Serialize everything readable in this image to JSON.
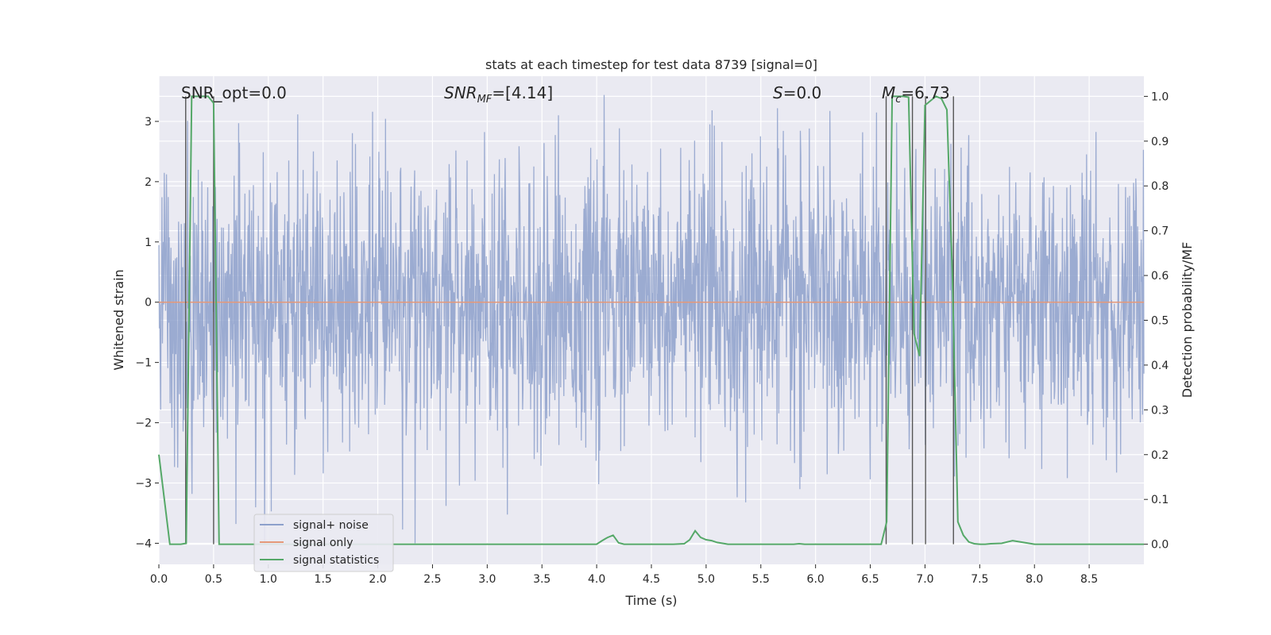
{
  "chart_data": {
    "type": "line",
    "title": "stats at each timestep for test data 8739 [signal=0]",
    "xlabel": "Time (s)",
    "ylabel": "Whitened strain",
    "ylabel_right": "Detection probability/MF",
    "xlim": [
      0.0,
      9.0
    ],
    "ylim": [
      -4.35,
      3.75
    ],
    "ylim_right": [
      -0.045,
      1.045
    ],
    "x_ticks": [
      "0.0",
      "0.5",
      "1.0",
      "1.5",
      "2.0",
      "2.5",
      "3.0",
      "3.5",
      "4.0",
      "4.5",
      "5.0",
      "5.5",
      "6.0",
      "6.5",
      "7.0",
      "7.5",
      "8.0",
      "8.5"
    ],
    "x_tick_values": [
      0.0,
      0.5,
      1.0,
      1.5,
      2.0,
      2.5,
      3.0,
      3.5,
      4.0,
      4.5,
      5.0,
      5.5,
      6.0,
      6.5,
      7.0,
      7.5,
      8.0,
      8.5
    ],
    "y_ticks_left": [
      "−4",
      "−3",
      "−2",
      "−1",
      "0",
      "1",
      "2",
      "3"
    ],
    "y_tick_values_left": [
      -4,
      -3,
      -2,
      -1,
      0,
      1,
      2,
      3
    ],
    "y_ticks_right": [
      "0.0",
      "0.1",
      "0.2",
      "0.3",
      "0.4",
      "0.5",
      "0.6",
      "0.7",
      "0.8",
      "0.9",
      "1.0"
    ],
    "y_tick_values_right": [
      0.0,
      0.1,
      0.2,
      0.3,
      0.4,
      0.5,
      0.6,
      0.7,
      0.8,
      0.9,
      1.0
    ],
    "grid": true,
    "legend_position": "lower-left",
    "annotations": {
      "snr_opt": "SNR_opt=0.0",
      "snr_mf_main": "SNR",
      "snr_mf_sub": "MF",
      "snr_mf_suffix": "=[4.14]",
      "s_main": "S",
      "s_suffix": "=0.0",
      "mc_main": "M",
      "mc_sub": "c",
      "mc_suffix": "=6.73"
    },
    "series": [
      {
        "name": "signal+ noise",
        "color": "#8da0cb",
        "description_level": "noise",
        "x_range": [
          0.0,
          9.0
        ],
        "typical_amplitude": 1.2,
        "peak_max": 3.5,
        "peak_min": -4.0
      },
      {
        "name": "signal only",
        "color": "#e5997a",
        "x": [
          0.0,
          9.0
        ],
        "y": [
          0.0,
          0.0
        ]
      },
      {
        "name": "signal statistics",
        "color": "#55a868",
        "axis": "right",
        "x": [
          0.0,
          0.05,
          0.1,
          0.15,
          0.2,
          0.25,
          0.3,
          0.35,
          0.4,
          0.45,
          0.5,
          0.55,
          0.6,
          0.65,
          0.7,
          1.0,
          2.0,
          3.0,
          3.5,
          4.0,
          4.05,
          4.1,
          4.15,
          4.2,
          4.25,
          4.3,
          4.5,
          4.7,
          4.8,
          4.85,
          4.9,
          4.95,
          5.0,
          5.05,
          5.1,
          5.15,
          5.2,
          5.25,
          5.3,
          5.5,
          5.8,
          5.85,
          5.9,
          6.0,
          6.5,
          6.55,
          6.6,
          6.65,
          6.7,
          6.75,
          6.8,
          6.85,
          6.9,
          6.95,
          7.0,
          7.05,
          7.1,
          7.15,
          7.2,
          7.25,
          7.3,
          7.35,
          7.4,
          7.45,
          7.5,
          7.55,
          7.6,
          7.7,
          7.8,
          7.9,
          7.95,
          8.0,
          8.05,
          8.1,
          8.5,
          9.0
        ],
        "y": [
          0.2,
          0.1,
          0.0,
          0.0,
          0.0,
          0.002,
          1.0,
          1.0,
          1.0,
          1.0,
          0.985,
          0.0,
          0.0,
          0.0,
          0.0,
          0.0,
          0.0,
          0.0,
          0.0,
          0.0,
          0.008,
          0.015,
          0.02,
          0.003,
          0.0,
          0.0,
          0.0,
          0.0,
          0.001,
          0.01,
          0.03,
          0.015,
          0.01,
          0.008,
          0.004,
          0.002,
          0.0,
          0.0,
          0.0,
          0.0,
          0.0,
          0.001,
          0.0,
          0.0,
          0.0,
          0.0,
          0.0,
          0.05,
          1.0,
          1.0,
          1.0,
          0.998,
          0.47,
          0.42,
          0.98,
          0.99,
          1.0,
          0.995,
          0.97,
          0.6,
          0.05,
          0.02,
          0.005,
          0.001,
          0.0,
          0.0,
          0.001,
          0.002,
          0.008,
          0.004,
          0.002,
          0.0,
          0.0,
          0.0,
          0.0,
          0.0
        ]
      }
    ],
    "vertical_lines": [
      0.245,
      0.5,
      6.645,
      6.885,
      7.005,
      7.26
    ],
    "vertical_line_top": 1.0,
    "vertical_line_bottom": 0.0
  }
}
